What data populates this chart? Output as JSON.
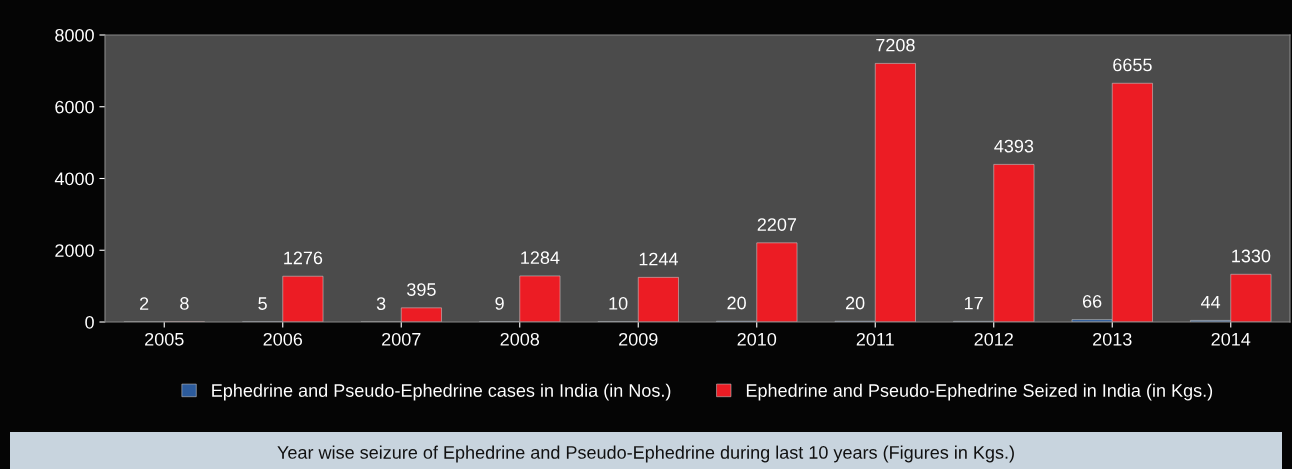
{
  "chart_data": {
    "type": "bar",
    "categories": [
      "2005",
      "2006",
      "2007",
      "2008",
      "2009",
      "2010",
      "2011",
      "2012",
      "2013",
      "2014"
    ],
    "series": [
      {
        "name": "Ephedrine and Pseudo-Ephedrine cases in India (in Nos.)",
        "color": "#2c5b9c",
        "values": [
          2,
          5,
          3,
          9,
          10,
          20,
          20,
          17,
          66,
          44
        ]
      },
      {
        "name": "Ephedrine and Pseudo-Ephedrine Seized in India (in Kgs.)",
        "color": "#ec1c24",
        "values": [
          8,
          1276,
          395,
          1284,
          1244,
          2207,
          7208,
          4393,
          6655,
          1330
        ]
      }
    ],
    "ylim": [
      0,
      8000
    ],
    "yticks": [
      0,
      2000,
      4000,
      6000,
      8000
    ],
    "grid": false,
    "legend": "bottom",
    "data_labels": true,
    "annotations": [
      "Year wise seizure of Ephedrine and Pseudo-Ephedrine during last 10 years (Figures in Kgs.)"
    ]
  }
}
